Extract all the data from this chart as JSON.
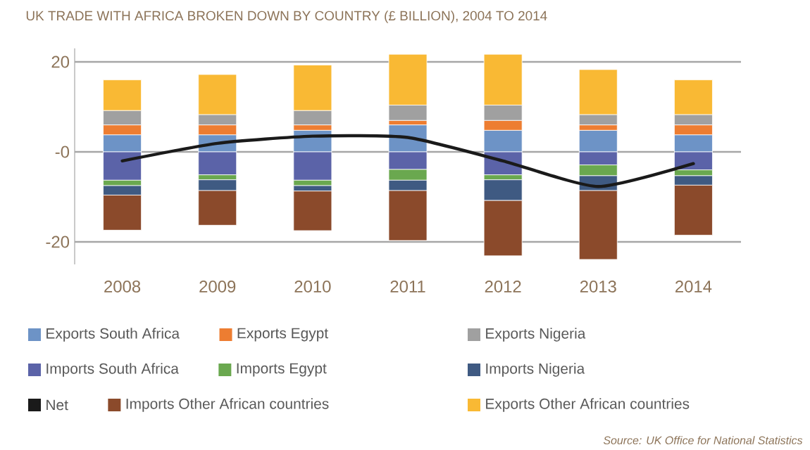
{
  "chart_data": {
    "type": "bar",
    "stacked": true,
    "title": "UK TRADE WITH AFRICA BROKEN DOWN BY COUNTRY (£ BILLION), 2004 TO 2014",
    "categories": [
      "2008",
      "2009",
      "2010",
      "2011",
      "2012",
      "2013",
      "2014"
    ],
    "series": [
      {
        "name": "Exports South Africa",
        "color": "#6d93c6",
        "values": [
          3.8,
          3.8,
          4.8,
          6.0,
          4.8,
          4.8,
          3.8
        ]
      },
      {
        "name": "Exports Egypt",
        "color": "#ed7d31",
        "values": [
          2.2,
          2.2,
          1.2,
          1.0,
          2.2,
          1.2,
          2.2
        ]
      },
      {
        "name": "Exports Nigeria",
        "color": "#a0a0a0",
        "values": [
          3.2,
          2.3,
          3.2,
          3.4,
          3.4,
          2.3,
          2.3
        ]
      },
      {
        "name": "Imports South Africa",
        "color": "#5b63a8",
        "values": [
          -6.3,
          -5.1,
          -6.3,
          -3.9,
          -5.1,
          -2.9,
          -4.0
        ]
      },
      {
        "name": "Imports Egypt",
        "color": "#6aa84f",
        "values": [
          -1.2,
          -1.1,
          -1.2,
          -2.4,
          -1.1,
          -2.4,
          -1.3
        ]
      },
      {
        "name": "Imports Nigeria",
        "color": "#3f5a82",
        "values": [
          -2.1,
          -2.4,
          -1.2,
          -2.3,
          -4.6,
          -3.3,
          -2.1
        ]
      },
      {
        "name": "Net",
        "type": "line",
        "color": "#1a1a1a",
        "values": [
          -2.0,
          1.9,
          3.5,
          3.2,
          -2.0,
          -7.7,
          -2.6
        ]
      },
      {
        "name": "Imports Other African countries",
        "color": "#8b4a2b",
        "values": [
          -7.8,
          -7.7,
          -8.8,
          -11.1,
          -12.3,
          -15.3,
          -11.1
        ]
      },
      {
        "name": "Exports Other African countries",
        "color": "#f9b934",
        "values": [
          6.8,
          8.9,
          10.1,
          11.3,
          11.3,
          10.0,
          7.7
        ]
      }
    ],
    "ylim": [
      -25,
      23
    ],
    "yticks": [
      -20,
      {
        "value": 0,
        "label": "-0"
      },
      20
    ],
    "grid": "y",
    "legend": "bottom",
    "annotations": [
      "Source: UK Office for National Statistics"
    ]
  }
}
